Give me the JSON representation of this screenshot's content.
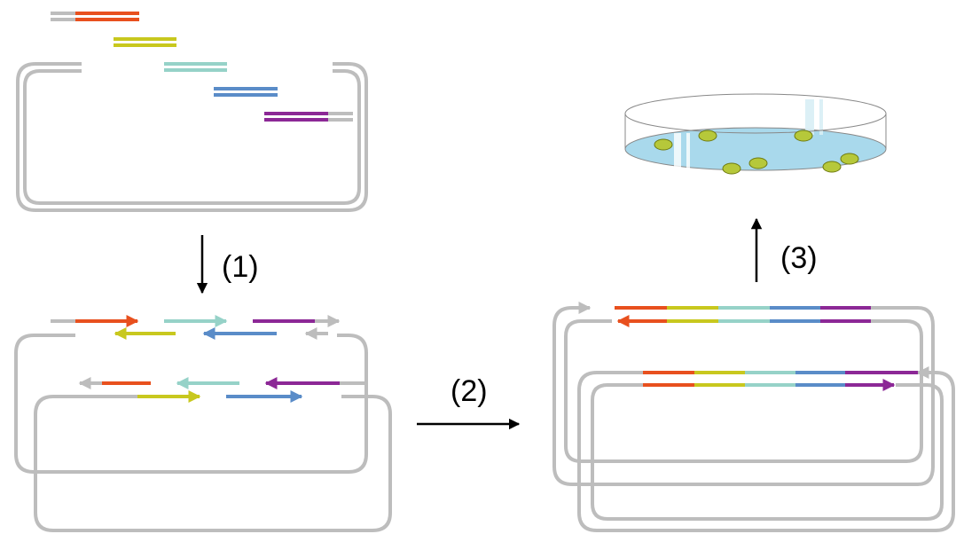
{
  "steps": [
    {
      "label": "(1)"
    },
    {
      "label": "(2)"
    },
    {
      "label": "(3)"
    }
  ]
}
